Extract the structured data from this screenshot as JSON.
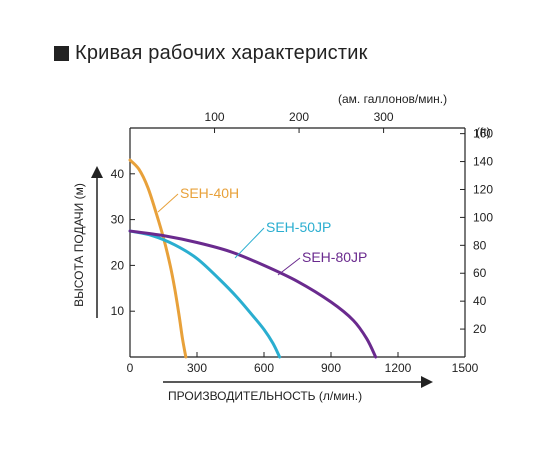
{
  "chart_data": {
    "type": "line",
    "title": "Кривая рабочих характеристик",
    "xlabel": "ПРОИЗВОДИТЕЛЬНОСТЬ (л/мин.)",
    "ylabel": "ВЫСОТА ПОДАЧИ (м)",
    "x2label": "(ам. галлонов/мин.)",
    "y2label": "(ft)",
    "xlim": [
      0,
      1500
    ],
    "ylim": [
      0,
      50
    ],
    "x_ticks": [
      0,
      300,
      600,
      900,
      1200,
      1500
    ],
    "y_ticks": [
      10,
      20,
      30,
      40
    ],
    "x2_ticks": [
      100,
      200,
      300
    ],
    "y2_ticks": [
      20,
      40,
      60,
      80,
      100,
      120,
      140,
      160
    ],
    "grid": false,
    "legend": "inline labels",
    "series": [
      {
        "name": "SEH-40H",
        "color": "#e8a13a",
        "x": [
          0,
          40,
          80,
          120,
          150,
          180,
          200,
          220,
          235,
          250
        ],
        "y": [
          43,
          41,
          37,
          31,
          26,
          20,
          15,
          9,
          4,
          0
        ]
      },
      {
        "name": "SEH-50JP",
        "color": "#2aaed0",
        "x": [
          0,
          100,
          200,
          300,
          400,
          480,
          550,
          600,
          640,
          670
        ],
        "y": [
          27.5,
          26.5,
          24.5,
          21.5,
          17,
          13,
          9,
          6,
          3,
          0
        ]
      },
      {
        "name": "SEH-80JP",
        "color": "#6a2a8e",
        "x": [
          0,
          150,
          300,
          450,
          600,
          750,
          900,
          1000,
          1060,
          1100
        ],
        "y": [
          27.5,
          26.5,
          25,
          23,
          20,
          16.5,
          12,
          8,
          4,
          0
        ]
      }
    ]
  }
}
